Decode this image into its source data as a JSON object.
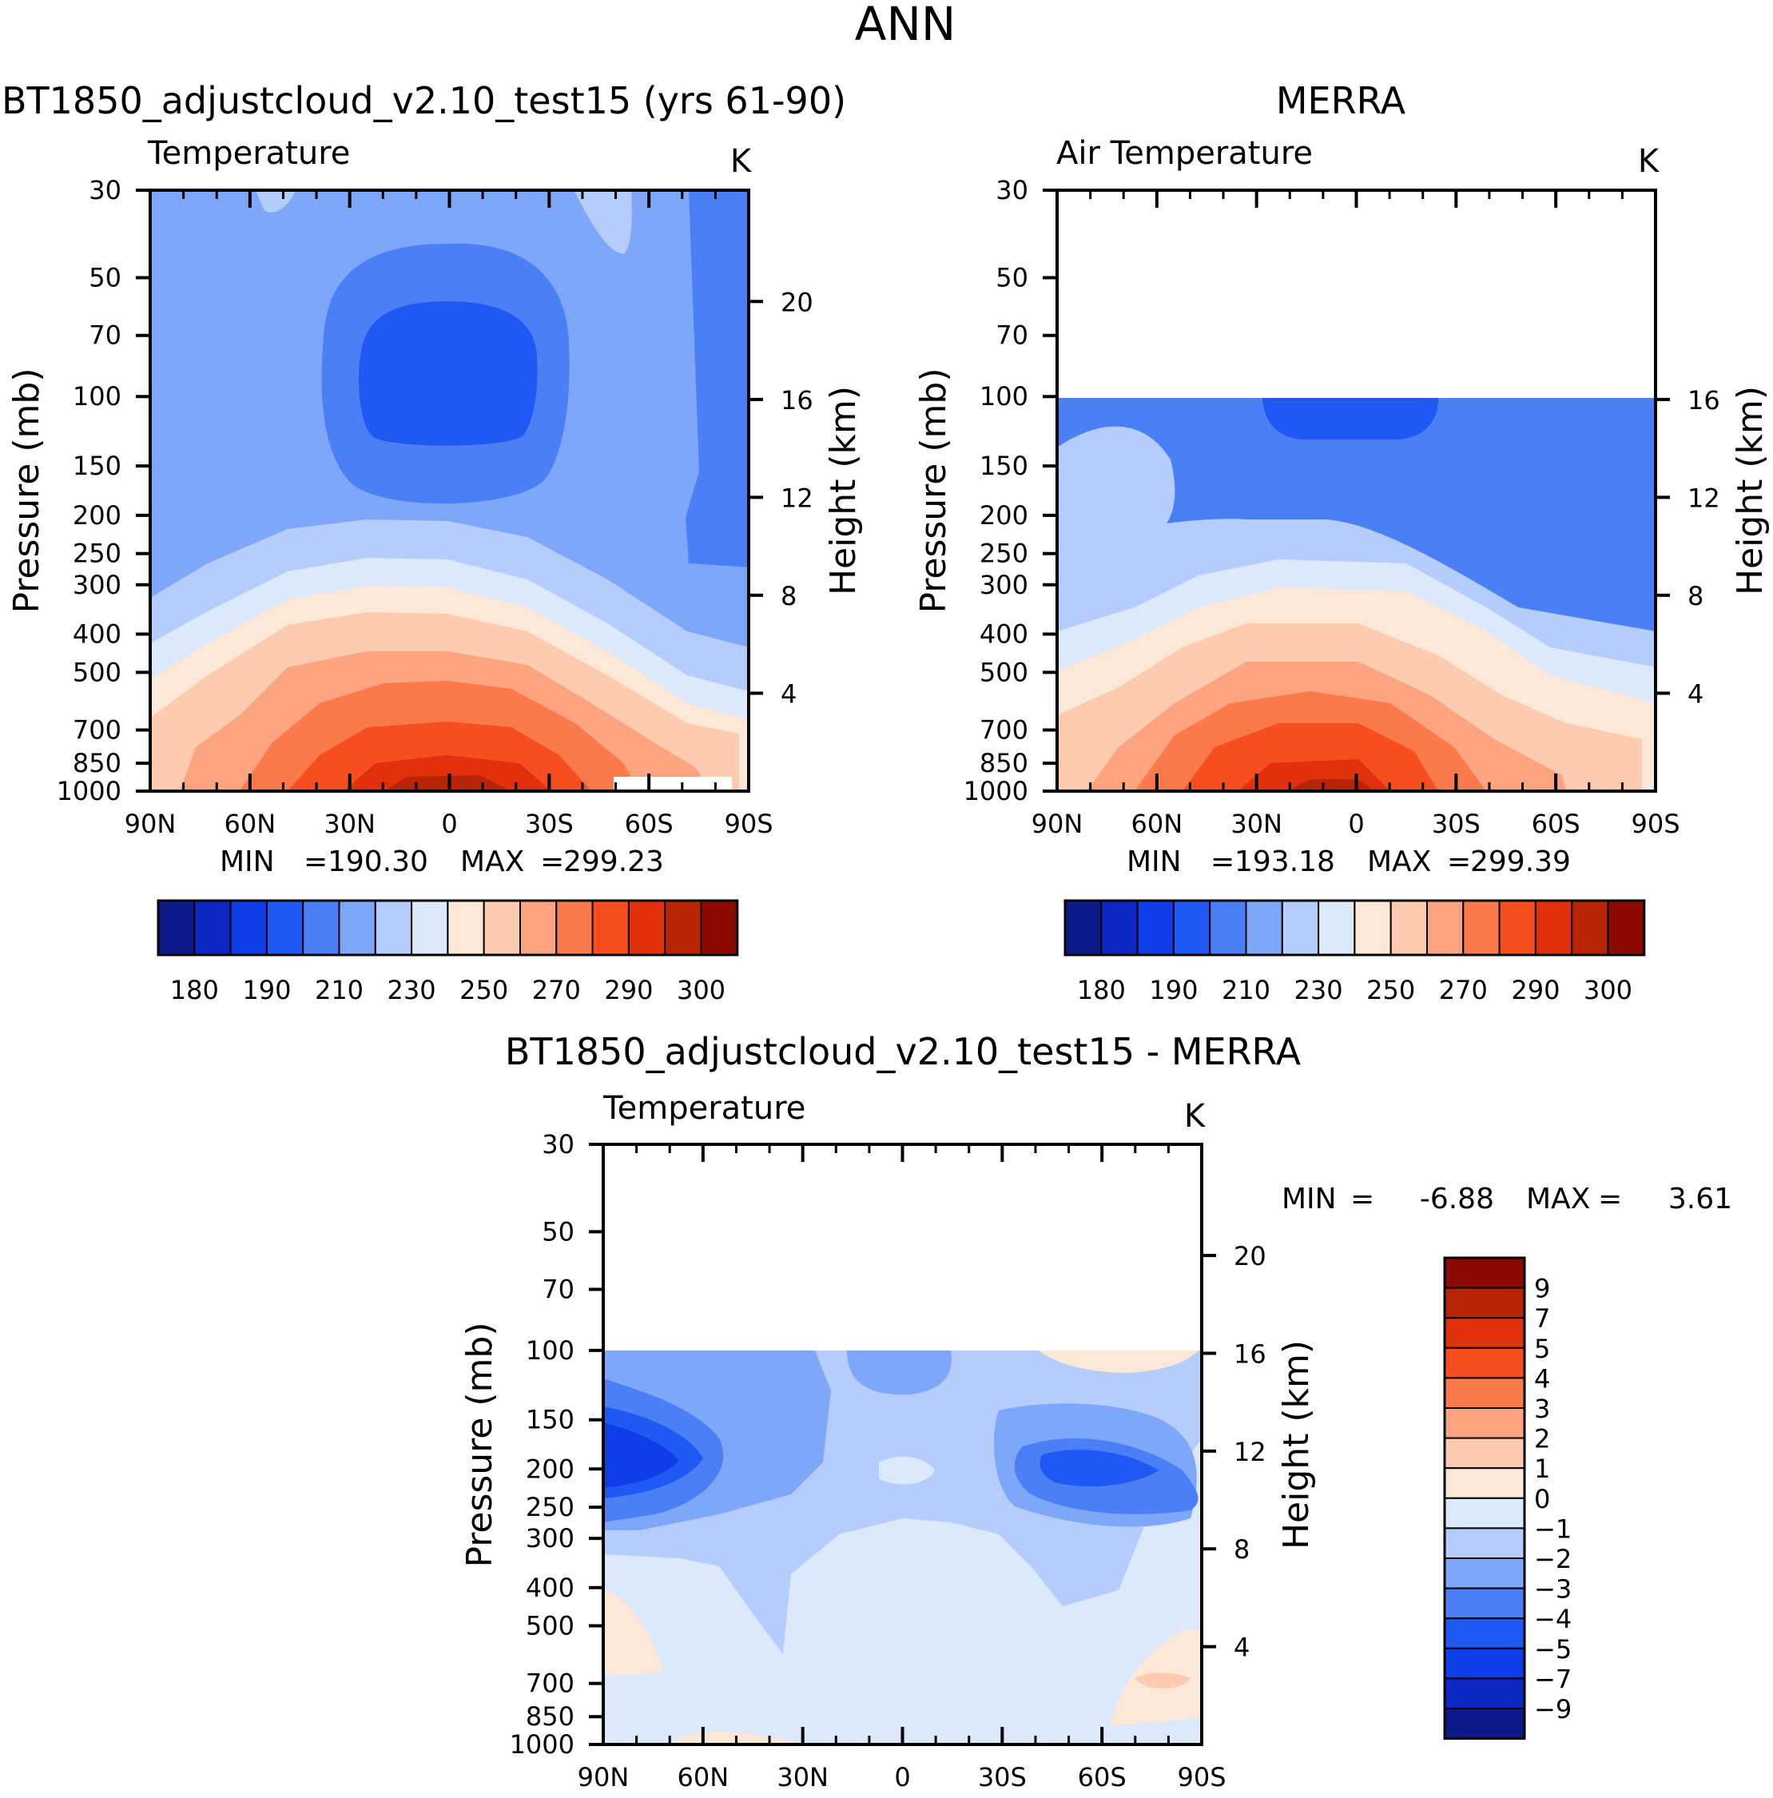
{
  "figure": {
    "title": "ANN"
  },
  "chart_data": [
    {
      "id": "model",
      "type": "heatmap",
      "subtitle": "BT1850_adjustcloud_v2.10_test15 (yrs 61-90)",
      "title": "Temperature",
      "units": "K",
      "ylabel": "Pressure (mb)",
      "ylabel_right": "Height (km)",
      "x_ticks": [
        "90N",
        "60N",
        "30N",
        "0",
        "30S",
        "60S",
        "90S"
      ],
      "y_ticks": [
        "30",
        "50",
        "70",
        "100",
        "150",
        "200",
        "250",
        "300",
        "400",
        "500",
        "700",
        "850",
        "1000"
      ],
      "height_ticks": [
        "20",
        "16",
        "12",
        "8",
        "4"
      ],
      "min_label": "MIN",
      "min_value": "190.30",
      "max_label": "MAX",
      "max_value": "299.23",
      "levels": [
        180,
        185,
        190,
        200,
        210,
        220,
        230,
        240,
        250,
        260,
        270,
        280,
        290,
        295,
        300
      ],
      "colorbar_labels": [
        "180",
        "190",
        "210",
        "230",
        "250",
        "270",
        "290",
        "300"
      ]
    },
    {
      "id": "obs",
      "type": "heatmap",
      "subtitle": "MERRA",
      "title": "Air Temperature",
      "units": "K",
      "ylabel": "Pressure (mb)",
      "ylabel_right": "Height (km)",
      "x_ticks": [
        "90N",
        "60N",
        "30N",
        "0",
        "30S",
        "60S",
        "90S"
      ],
      "y_ticks": [
        "30",
        "50",
        "70",
        "100",
        "150",
        "200",
        "250",
        "300",
        "400",
        "500",
        "700",
        "850",
        "1000"
      ],
      "height_ticks": [
        "16",
        "12",
        "8",
        "4"
      ],
      "min_label": "MIN",
      "min_value": "193.18",
      "max_label": "MAX",
      "max_value": "299.39",
      "top_pressure": 100,
      "levels": [
        180,
        185,
        190,
        200,
        210,
        220,
        230,
        240,
        250,
        260,
        270,
        280,
        290,
        295,
        300
      ],
      "colorbar_labels": [
        "180",
        "190",
        "210",
        "230",
        "250",
        "270",
        "290",
        "300"
      ]
    },
    {
      "id": "diff",
      "type": "heatmap",
      "subtitle": "BT1850_adjustcloud_v2.10_test15 - MERRA",
      "title": "Temperature",
      "units": "K",
      "ylabel": "Pressure (mb)",
      "ylabel_right": "Height (km)",
      "x_ticks": [
        "90N",
        "60N",
        "30N",
        "0",
        "30S",
        "60S",
        "90S"
      ],
      "y_ticks": [
        "30",
        "50",
        "70",
        "100",
        "150",
        "200",
        "250",
        "300",
        "400",
        "500",
        "700",
        "850",
        "1000"
      ],
      "height_ticks": [
        "20",
        "16",
        "12",
        "8",
        "4"
      ],
      "min_label": "MIN",
      "min_value": "-6.88",
      "max_label": "MAX",
      "max_value": "3.61",
      "top_pressure": 100,
      "levels": [
        -9,
        -7,
        -5,
        -4,
        -3,
        -2,
        -1,
        0,
        1,
        2,
        3,
        4,
        5,
        7,
        9
      ],
      "colorbar_labels": [
        "9",
        "7",
        "5",
        "4",
        "3",
        "2",
        "1",
        "0",
        "-1",
        "-2",
        "-3",
        "-4",
        "-5",
        "-7",
        "-9"
      ]
    }
  ],
  "colors": {
    "palette": [
      "#0b1a86",
      "#0d28c2",
      "#0f3de8",
      "#1f58f2",
      "#4a7ff5",
      "#7ea7fa",
      "#b5cdfc",
      "#dce9fd",
      "#fde8d8",
      "#fccbb0",
      "#fba47f",
      "#fb7a4b",
      "#f74e20",
      "#e0300c",
      "#b82406",
      "#8b0a03"
    ]
  }
}
